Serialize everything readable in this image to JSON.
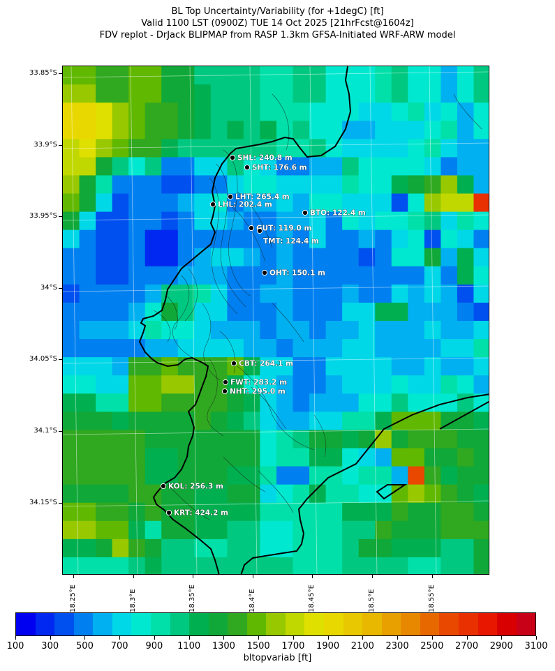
{
  "title": {
    "line1": "BL Top Uncertainty/Variability (for +1degC) [ft]",
    "line2": "Valid 1100 LST (0900Z) TUE 14 Oct 2025 [21hrFcst@1604z]",
    "line3": "FDV replot - DrJack BLIPMAP from RASP 1.3km GFSA-Initiated WRF-ARW model"
  },
  "map": {
    "lat_labels": [
      "33.85°S",
      "33.9°S",
      "33.95°S",
      "34°S",
      "34.05°S",
      "34.1°S",
      "34.15°S"
    ],
    "lon_labels": [
      "18.25°E",
      "18.3°E",
      "18.35°E",
      "18.4°E",
      "18.45°E",
      "18.5°E",
      "18.55°E"
    ],
    "stations": [
      {
        "code": "SHL",
        "label": "SHL: 240.8 m"
      },
      {
        "code": "SHT",
        "label": "SHT: 176.6 m"
      },
      {
        "code": "LHT",
        "label": "LHT: 265.4 m"
      },
      {
        "code": "LHL",
        "label": "LHL: 202.4 m"
      },
      {
        "code": "BTO",
        "label": "BTO: 122.4 m"
      },
      {
        "code": "GUT",
        "label": "GUT: 119.0 m"
      },
      {
        "code": "TMT",
        "label": "TMT: 124.4 m"
      },
      {
        "code": "OHT",
        "label": "OHT: 150.1 m"
      },
      {
        "code": "CBT",
        "label": "CBT: 264.1 m"
      },
      {
        "code": "FWT",
        "label": "FWT: 283.2 m"
      },
      {
        "code": "NHT",
        "label": "NHT: 295.0 m"
      },
      {
        "code": "KOL",
        "label": "KOL: 256.3 m"
      },
      {
        "code": "KRT",
        "label": "KRT: 424.2 m"
      }
    ]
  },
  "colorbar": {
    "label": "bltopvariab [ft]",
    "tick_labels": [
      "100",
      "300",
      "500",
      "700",
      "900",
      "1100",
      "1300",
      "1500",
      "1700",
      "1900",
      "2100",
      "2300",
      "2500",
      "2700",
      "2900",
      "3100"
    ],
    "colors": [
      "#0000f0",
      "#0028f0",
      "#0050f0",
      "#0080f0",
      "#00b0f0",
      "#00d8e8",
      "#00e8d0",
      "#00e0a8",
      "#00c880",
      "#00b050",
      "#10a838",
      "#30a820",
      "#60b800",
      "#98c800",
      "#c0d800",
      "#e0e000",
      "#e8d800",
      "#e8c800",
      "#e8b800",
      "#e8a000",
      "#e88800",
      "#e86800",
      "#e84800",
      "#e83000",
      "#e81800",
      "#d80000",
      "#c80018"
    ]
  }
}
